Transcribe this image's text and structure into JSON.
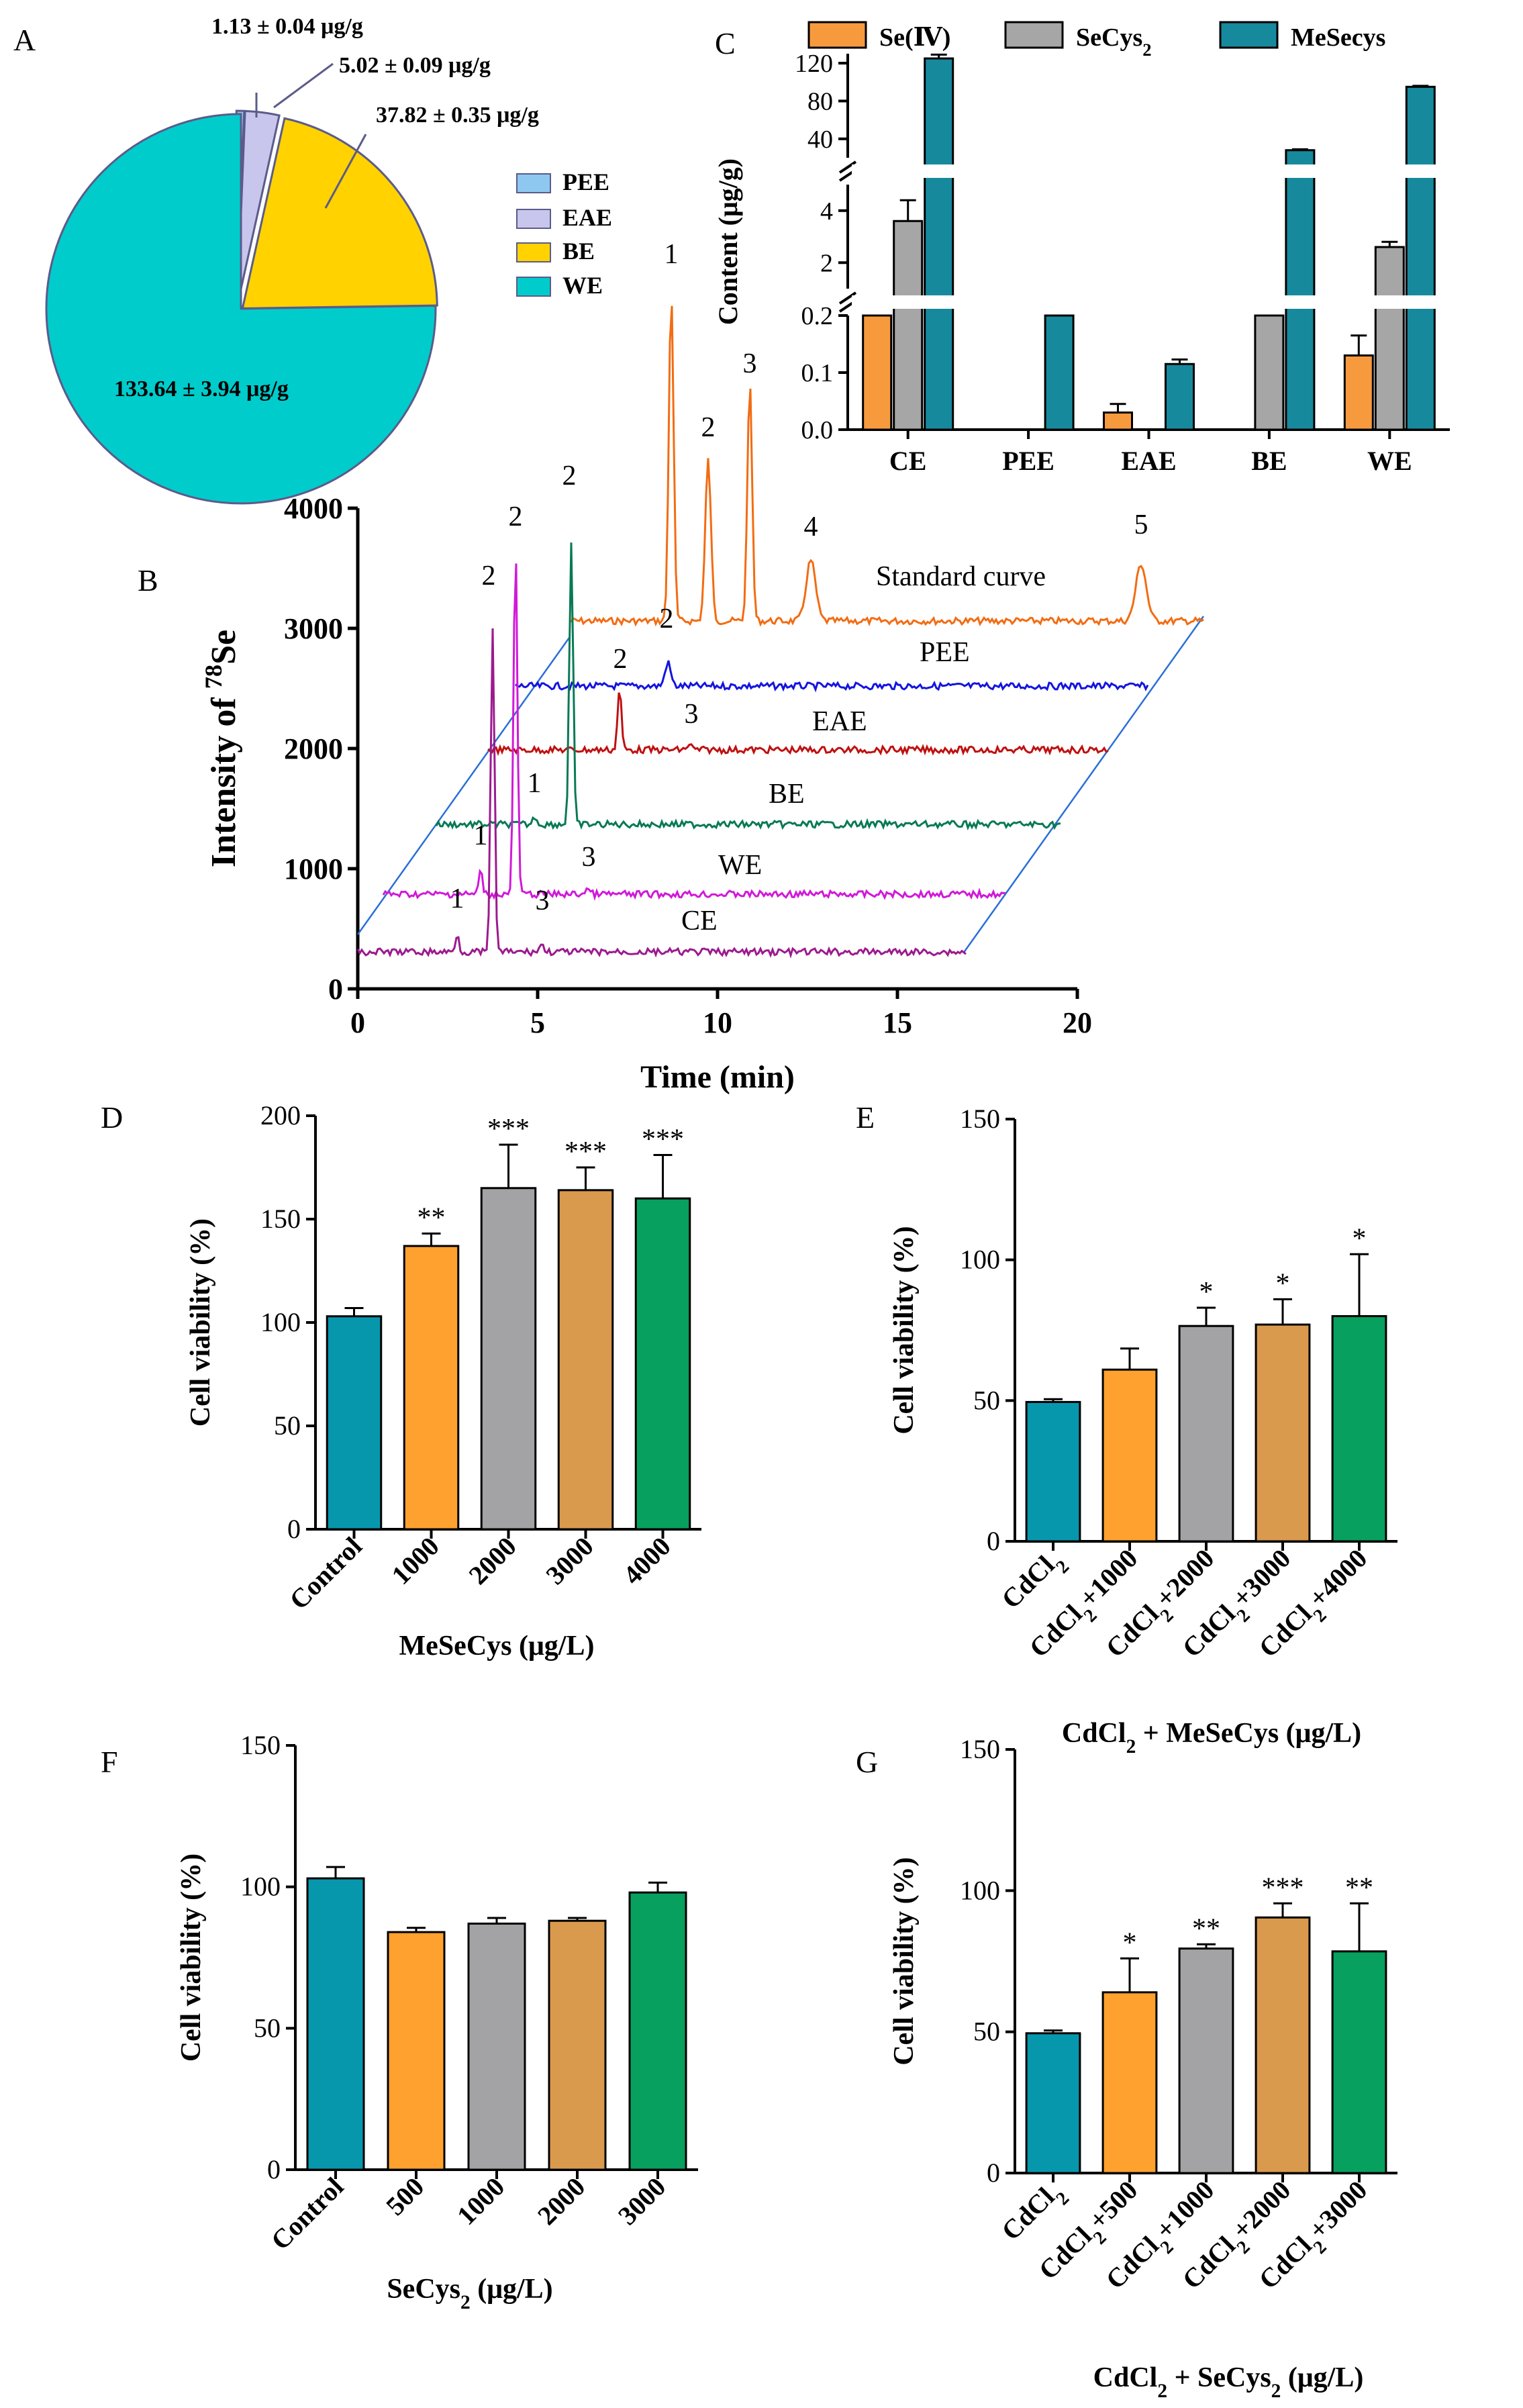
{
  "colors": {
    "pee": "#8ec8f0",
    "eae": "#c8c6ec",
    "be": "#ffd200",
    "we": "#00cccc",
    "teal": "#0797ad",
    "orange": "#ffa12e",
    "gray": "#a3a3a6",
    "tan": "#d99a4e",
    "green": "#07a05e",
    "se4": "#f79a3e",
    "secys2": "#a6a6a6",
    "mesecys": "#16899d",
    "std": "#f26c13",
    "peeLine": "#1414e0",
    "eaeLine": "#c01010",
    "beLine": "#077a55",
    "weLine": "#d01ad8",
    "ceLine": "#9c1a8e",
    "frame": "#2b6fd6"
  },
  "chart_data": [
    {
      "id": "A",
      "panel_label": "A",
      "type": "pie",
      "labels": [
        "PEE",
        "EAE",
        "BE",
        "WE"
      ],
      "values": [
        1.13,
        5.02,
        37.82,
        133.64
      ],
      "value_labels": [
        "1.13 ± 0.04 μg/g",
        "5.02 ± 0.09 μg/g",
        "37.82 ± 0.35 μg/g",
        "133.64 ± 3.94 μg/g"
      ],
      "legend": [
        "PEE",
        "EAE",
        "BE",
        "WE"
      ]
    },
    {
      "id": "B",
      "panel_label": "B",
      "type": "line",
      "title": "",
      "xlabel": "Time (min)",
      "ylabel_prefix": "Intensity of ",
      "ylabel_sup": "78",
      "ylabel_suffix": "Se",
      "xlim": [
        0,
        20
      ],
      "ylim": [
        0,
        4000
      ],
      "xticks": [
        "0",
        "5",
        "10",
        "15",
        "20"
      ],
      "yticks": [
        "0",
        "1000",
        "2000",
        "3000",
        "4000"
      ],
      "series_labels": [
        "Standard curve",
        "PEE",
        "EAE",
        "BE",
        "WE",
        "CE"
      ],
      "std_peak_labels": [
        "1",
        "2",
        "3",
        "4",
        "5"
      ],
      "peak_labels": [
        "2",
        "2",
        "3",
        "2",
        "1",
        "2",
        "1",
        "3",
        "1",
        "3"
      ]
    },
    {
      "id": "C",
      "panel_label": "C",
      "type": "bar",
      "categories": [
        "CE",
        "PEE",
        "EAE",
        "BE",
        "WE"
      ],
      "series": [
        {
          "name": "Se(Ⅳ)",
          "values": [
            0.2,
            0,
            0.03,
            0,
            0.13
          ],
          "errors": [
            0,
            0,
            0.015,
            0,
            0.035
          ]
        },
        {
          "name": "SeCys2",
          "values": [
            3.6,
            0,
            0,
            0.6,
            2.6
          ],
          "errors": [
            0.8,
            0,
            0,
            0.1,
            0.2
          ]
        },
        {
          "name": "MeSecys",
          "values": [
            125,
            0.6,
            0.115,
            28,
            95
          ],
          "errors": [
            4,
            0.1,
            0.008,
            1,
            1
          ]
        }
      ],
      "legend": [
        "Se(Ⅳ)",
        "SeCys",
        "MeSecys"
      ],
      "legend_sub": "2",
      "ylabel": "Content (μg/g)",
      "ylim_segments": [
        [
          0,
          0.2
        ],
        [
          1,
          5
        ],
        [
          20,
          130
        ]
      ],
      "yticks_top": [
        "40",
        "80",
        "120"
      ],
      "yticks_mid": [
        "2",
        "4"
      ],
      "yticks_bottom": [
        "0.0",
        "0.1",
        "0.2"
      ]
    },
    {
      "id": "D",
      "panel_label": "D",
      "type": "bar",
      "categories": [
        "Control",
        "1000",
        "2000",
        "3000",
        "4000"
      ],
      "values": [
        103,
        137,
        165,
        164,
        160
      ],
      "errors": [
        4,
        6,
        21,
        11,
        21
      ],
      "significance": [
        "",
        "**",
        "***",
        "***",
        "***"
      ],
      "ylabel": "Cell viability (%)",
      "xlabel": "MeSeCys (μg/L)",
      "ylim": [
        0,
        200
      ],
      "yticks": [
        "0",
        "50",
        "100",
        "150",
        "200"
      ]
    },
    {
      "id": "E",
      "panel_label": "E",
      "type": "bar",
      "categories": [
        "CdCl2",
        "CdCl2+1000",
        "CdCl2+2000",
        "CdCl2+3000",
        "CdCl2+4000"
      ],
      "values": [
        49.5,
        61,
        76.5,
        77,
        80
      ],
      "errors": [
        1,
        7.5,
        6.5,
        9,
        22
      ],
      "significance": [
        "",
        "",
        "*",
        "*",
        "*"
      ],
      "ylabel": "Cell viability (%)",
      "xlabel": "CdCl2 + MeSeCys (μg/L)",
      "ylim": [
        0,
        150
      ],
      "yticks": [
        "0",
        "50",
        "100",
        "150"
      ]
    },
    {
      "id": "F",
      "panel_label": "F",
      "type": "bar",
      "categories": [
        "Control",
        "500",
        "1000",
        "2000",
        "3000"
      ],
      "values": [
        103,
        84,
        87,
        88,
        98
      ],
      "errors": [
        4,
        1.5,
        2,
        1,
        3.5
      ],
      "significance": [
        "",
        "",
        "",
        "",
        ""
      ],
      "ylabel": "Cell viability (%)",
      "xlabel": "SeCys2 (μg/L)",
      "ylim": [
        0,
        150
      ],
      "yticks": [
        "0",
        "50",
        "100",
        "150"
      ]
    },
    {
      "id": "G",
      "panel_label": "G",
      "type": "bar",
      "categories": [
        "CdCl2",
        "CdCl2+500",
        "CdCl2+1000",
        "CdCl2+2000",
        "CdCl2+3000"
      ],
      "values": [
        49.5,
        64,
        79.5,
        90.5,
        78.5
      ],
      "errors": [
        1,
        12,
        1.5,
        5,
        17
      ],
      "significance": [
        "",
        "*",
        "**",
        "***",
        "**"
      ],
      "ylabel": "Cell viability (%)",
      "xlabel": "CdCl2 + SeCys2 (μg/L)",
      "ylim": [
        0,
        150
      ],
      "yticks": [
        "0",
        "50",
        "100",
        "150"
      ]
    }
  ]
}
